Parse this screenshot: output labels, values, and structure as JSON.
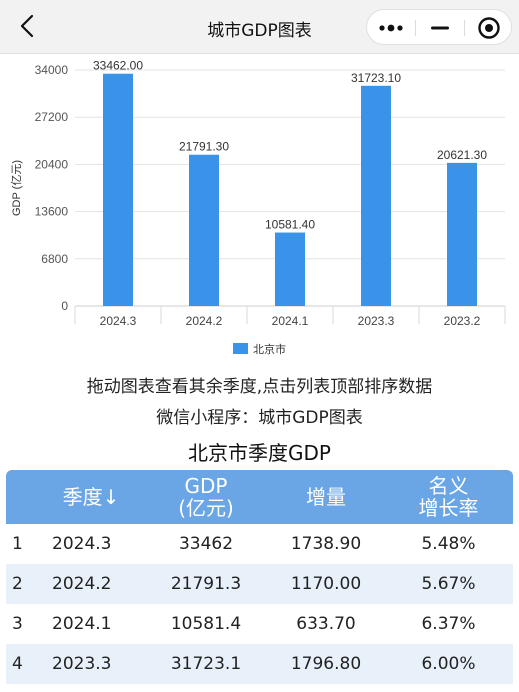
{
  "navbar": {
    "title": "城市GDP图表"
  },
  "chart_data": {
    "type": "bar",
    "categories": [
      "2024.3",
      "2024.2",
      "2024.1",
      "2023.3",
      "2023.2"
    ],
    "series": [
      {
        "name": "北京市",
        "values": [
          33462.0,
          21791.3,
          10581.4,
          31723.1,
          20621.3
        ]
      }
    ],
    "value_labels": [
      "33462.00",
      "21791.30",
      "10581.40",
      "31723.10",
      "20621.30"
    ],
    "ylabel": "GDP (亿元)",
    "yticks": [
      "0",
      "6800",
      "13600",
      "20400",
      "27200",
      "34000"
    ],
    "ylim": [
      0,
      34000
    ],
    "grid": true,
    "legend_position": "bottom-center",
    "bar_color": "#3a93e8"
  },
  "hints": {
    "drag": "拖动图表查看其余季度,点击列表顶部排序数据",
    "mini_program": "微信小程序：城市GDP图表"
  },
  "table": {
    "title": "北京市季度GDP",
    "headers": {
      "quarter": "季度↓",
      "gdp_line1": "GDP",
      "gdp_line2": "(亿元)",
      "increase": "增量",
      "growth_line1": "名义",
      "growth_line2": "增长率"
    },
    "rows": [
      {
        "rank": "1",
        "quarter": "2024.3",
        "gdp": "33462",
        "increase": "1738.90",
        "growth": "5.48%"
      },
      {
        "rank": "2",
        "quarter": "2024.2",
        "gdp": "21791.3",
        "increase": "1170.00",
        "growth": "5.67%"
      },
      {
        "rank": "3",
        "quarter": "2024.1",
        "gdp": "10581.4",
        "increase": "633.70",
        "growth": "6.37%"
      },
      {
        "rank": "4",
        "quarter": "2023.3",
        "gdp": "31723.1",
        "increase": "1796.80",
        "growth": "6.00%"
      }
    ],
    "header_color": "#6aa6e6",
    "alt_row_color": "#e8f1fa"
  }
}
